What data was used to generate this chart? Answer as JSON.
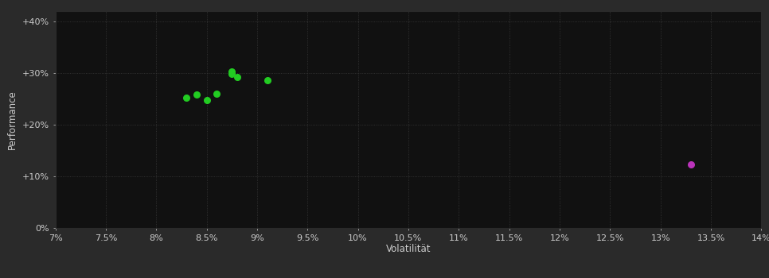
{
  "background_color": "#2a2a2a",
  "plot_bg_color": "#111111",
  "grid_color": "#3a3a3a",
  "xlabel": "Volatilität",
  "ylabel": "Performance",
  "xlim": [
    0.07,
    0.14
  ],
  "ylim": [
    0.0,
    0.42
  ],
  "xticks": [
    0.07,
    0.075,
    0.08,
    0.085,
    0.09,
    0.095,
    0.1,
    0.105,
    0.11,
    0.115,
    0.12,
    0.125,
    0.13,
    0.135,
    0.14
  ],
  "xtick_labels": [
    "7%",
    "7.5%",
    "8%",
    "8.5%",
    "9%",
    "9.5%",
    "10%",
    "10.5%",
    "11%",
    "11.5%",
    "12%",
    "12.5%",
    "13%",
    "13.5%",
    "14%"
  ],
  "yticks": [
    0.0,
    0.1,
    0.2,
    0.3,
    0.4
  ],
  "ytick_labels": [
    "0%",
    "+10%",
    "+20%",
    "+30%",
    "+40%"
  ],
  "green_points": [
    [
      0.083,
      0.252
    ],
    [
      0.084,
      0.258
    ],
    [
      0.085,
      0.247
    ],
    [
      0.086,
      0.26
    ],
    [
      0.0875,
      0.298
    ],
    [
      0.0875,
      0.303
    ],
    [
      0.088,
      0.293
    ],
    [
      0.091,
      0.286
    ]
  ],
  "magenta_points": [
    [
      0.133,
      0.123
    ]
  ],
  "green_color": "#22cc22",
  "magenta_color": "#bb33bb",
  "point_size": 30,
  "tick_color": "#cccccc",
  "tick_fontsize": 8,
  "label_fontsize": 8.5,
  "label_color": "#cccccc"
}
